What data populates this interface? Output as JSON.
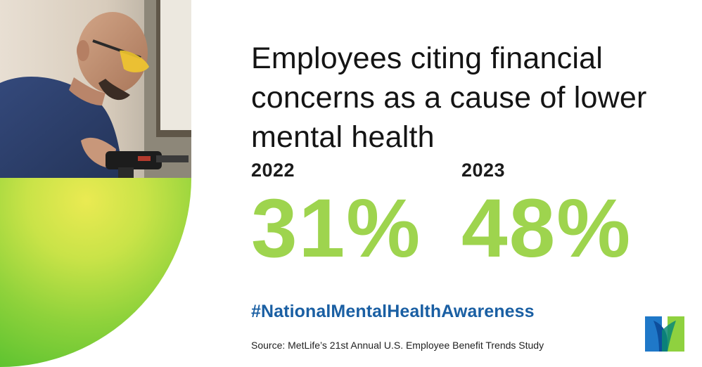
{
  "headline": "Employees citing financial concerns as a cause of lower mental health",
  "stats": [
    {
      "year": "2022",
      "value": "31%"
    },
    {
      "year": "2023",
      "value": "48%"
    }
  ],
  "hashtag": "#NationalMentalHealthAwareness",
  "source": "Source: MetLife’s 21st Annual U.S. Employee Benefit Trends Study",
  "colors": {
    "stat_green": "#9ed44e",
    "hashtag_blue": "#1a5fa3",
    "gradient_yellow": "#eaea52",
    "gradient_green": "#57c12f",
    "logo_blue": "#1f78c8",
    "logo_green": "#8fd13f"
  },
  "images": {
    "photo": "man-with-safety-glasses-holding-power-drill",
    "logo": "metlife-logo"
  }
}
